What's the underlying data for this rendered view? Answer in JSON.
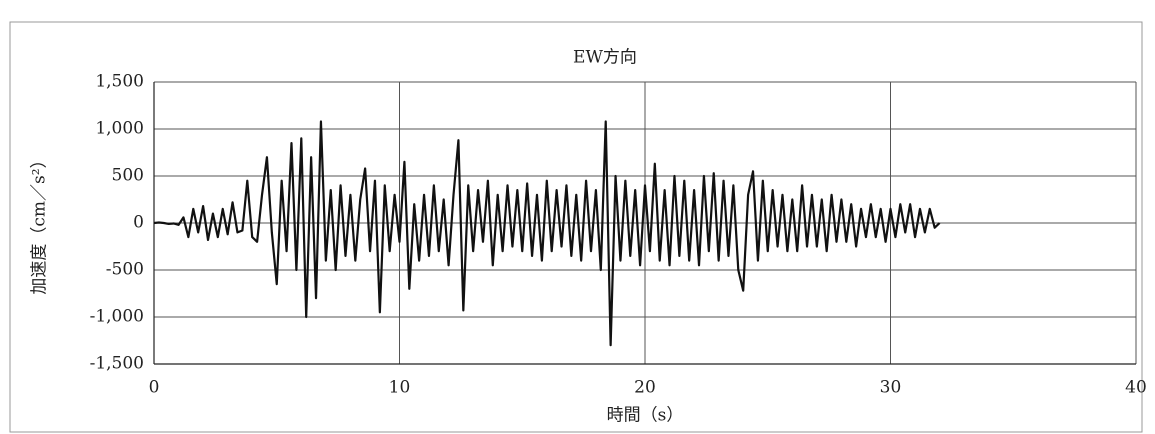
{
  "chart_data": {
    "type": "line",
    "title": "EW方向",
    "xlabel": "時間（s）",
    "ylabel": "加速度（cm／s²）",
    "color": "#111111",
    "grid": true,
    "xlim": [
      0,
      40
    ],
    "xticks": [
      0,
      10,
      20,
      30,
      40
    ],
    "ylim": [
      -1500,
      1500
    ],
    "yticks": [
      {
        "value": -1500,
        "label": "-1,500"
      },
      {
        "value": -1000,
        "label": "-1,000"
      },
      -500,
      0,
      500,
      {
        "value": 1000,
        "label": "1,000"
      },
      {
        "value": 1500,
        "label": "1,500"
      }
    ],
    "x": [
      0,
      0.2,
      0.4,
      0.6,
      0.8,
      1,
      1.2,
      1.4,
      1.6,
      1.8,
      2,
      2.2,
      2.4,
      2.6,
      2.8,
      3,
      3.2,
      3.4,
      3.6,
      3.8,
      4,
      4.2,
      4.4,
      4.6,
      4.8,
      5,
      5.2,
      5.4,
      5.6,
      5.8,
      6,
      6.2,
      6.4,
      6.6,
      6.8,
      7,
      7.2,
      7.4,
      7.6,
      7.8,
      8,
      8.2,
      8.4,
      8.6,
      8.8,
      9,
      9.2,
      9.4,
      9.6,
      9.8,
      10,
      10.2,
      10.4,
      10.6,
      10.8,
      11,
      11.2,
      11.4,
      11.6,
      11.8,
      12,
      12.2,
      12.4,
      12.6,
      12.8,
      13,
      13.2,
      13.4,
      13.6,
      13.8,
      14,
      14.2,
      14.4,
      14.6,
      14.8,
      15,
      15.2,
      15.4,
      15.6,
      15.8,
      16,
      16.2,
      16.4,
      16.6,
      16.8,
      17,
      17.2,
      17.4,
      17.6,
      17.8,
      18,
      18.2,
      18.4,
      18.6,
      18.8,
      19,
      19.2,
      19.4,
      19.6,
      19.8,
      20,
      20.2,
      20.4,
      20.6,
      20.8,
      21,
      21.2,
      21.4,
      21.6,
      21.8,
      22,
      22.2,
      22.4,
      22.6,
      22.8,
      23,
      23.2,
      23.4,
      23.6,
      23.8,
      24,
      24.2,
      24.4,
      24.6,
      24.8,
      25,
      25.2,
      25.4,
      25.6,
      25.8,
      26,
      26.2,
      26.4,
      26.6,
      26.8,
      27,
      27.2,
      27.4,
      27.6,
      27.8,
      28,
      28.2,
      28.4,
      28.6,
      28.8,
      29,
      29.2,
      29.4,
      29.6,
      29.8,
      30,
      30.2,
      30.4,
      30.6,
      30.8,
      31,
      31.2,
      31.4,
      31.6,
      31.8,
      32
    ],
    "values": [
      0,
      5,
      0,
      -10,
      -5,
      -20,
      60,
      -150,
      150,
      -100,
      180,
      -180,
      100,
      -150,
      150,
      -120,
      220,
      -100,
      -80,
      450,
      -150,
      -200,
      300,
      700,
      -100,
      -650,
      450,
      -300,
      850,
      -500,
      900,
      -1000,
      700,
      -800,
      1080,
      -400,
      350,
      -500,
      400,
      -350,
      300,
      -400,
      250,
      580,
      -300,
      450,
      -950,
      400,
      -300,
      300,
      -200,
      650,
      -700,
      200,
      -400,
      300,
      -350,
      400,
      -300,
      250,
      -450,
      300,
      880,
      -930,
      400,
      -300,
      350,
      -200,
      450,
      -450,
      300,
      -300,
      400,
      -250,
      350,
      -300,
      420,
      -350,
      300,
      -400,
      450,
      -300,
      350,
      -250,
      400,
      -350,
      300,
      -400,
      450,
      -300,
      350,
      -500,
      1080,
      -1300,
      500,
      -400,
      450,
      -350,
      350,
      -450,
      400,
      -300,
      630,
      -400,
      350,
      -450,
      500,
      -350,
      450,
      -400,
      350,
      -450,
      500,
      -300,
      530,
      -400,
      450,
      -350,
      400,
      -500,
      -720,
      300,
      550,
      -400,
      450,
      -300,
      350,
      -250,
      300,
      -300,
      250,
      -300,
      400,
      -250,
      300,
      -250,
      250,
      -300,
      300,
      -200,
      250,
      -200,
      200,
      -250,
      150,
      -150,
      200,
      -150,
      150,
      -200,
      150,
      -150,
      200,
      -100,
      200,
      -150,
      150,
      -100,
      150,
      -50,
      0
    ]
  }
}
